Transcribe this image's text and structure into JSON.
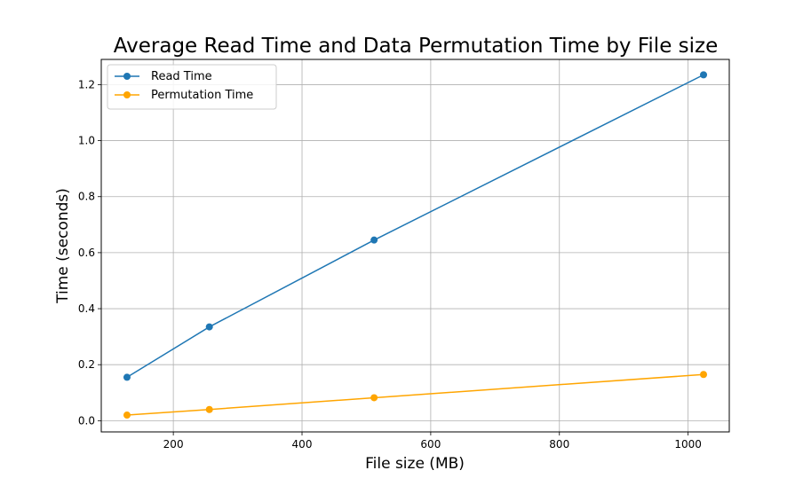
{
  "chart_data": {
    "type": "line",
    "title": "Average Read Time and Data Permutation Time by File size",
    "xlabel": "File size (MB)",
    "ylabel": "Time (seconds)",
    "x": [
      128,
      256,
      512,
      1024
    ],
    "xlim": [
      88,
      1064
    ],
    "ylim": [
      -0.04,
      1.29
    ],
    "xticks": [
      200,
      400,
      600,
      800,
      1000
    ],
    "yticks": [
      0.0,
      0.2,
      0.4,
      0.6,
      0.8,
      1.0,
      1.2
    ],
    "xtick_labels": [
      "200",
      "400",
      "600",
      "800",
      "1000"
    ],
    "ytick_labels": [
      "0.0",
      "0.2",
      "0.4",
      "0.6",
      "0.8",
      "1.0",
      "1.2"
    ],
    "grid": true,
    "legend_position": "top-left",
    "series": [
      {
        "name": "Read Time",
        "values": [
          0.155,
          0.335,
          0.645,
          1.235
        ],
        "color": "#1f77b4",
        "marker": "circle"
      },
      {
        "name": "Permutation Time",
        "values": [
          0.02,
          0.04,
          0.082,
          0.165
        ],
        "color": "#ffa500",
        "marker": "circle"
      }
    ]
  }
}
